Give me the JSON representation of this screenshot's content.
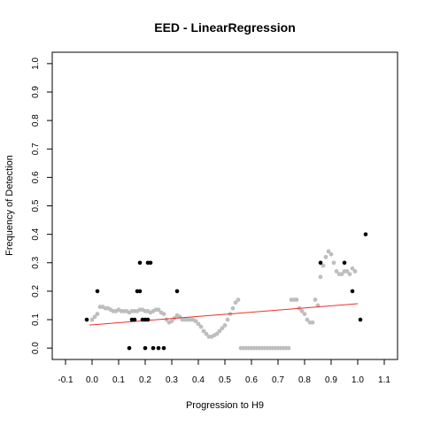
{
  "chart_data": {
    "type": "scatter",
    "title": "EED - LinearRegression",
    "xlabel": "Progression to H9",
    "ylabel": "Frequency of Detection",
    "xlim": [
      -0.15,
      1.15
    ],
    "ylim": [
      -0.04,
      1.04
    ],
    "x_ticks": [
      "-0.1",
      "0.0",
      "0.1",
      "0.2",
      "0.3",
      "0.4",
      "0.5",
      "0.6",
      "0.7",
      "0.8",
      "0.9",
      "1.0",
      "1.1"
    ],
    "y_ticks": [
      "0.0",
      "0.1",
      "0.2",
      "0.3",
      "0.4",
      "0.5",
      "0.6",
      "0.7",
      "0.8",
      "0.9",
      "1.0"
    ],
    "grid": false,
    "legend": "none",
    "colors": {
      "observed": "#000000",
      "smoothed": "#bebebe",
      "regression": "#e8322d"
    },
    "series": [
      {
        "type": "line",
        "values": [
          [
            -0.01,
            0.081
          ],
          [
            1.0,
            0.156
          ]
        ]
      },
      {
        "type": "scatter",
        "values": [
          [
            0.0,
            0.1
          ],
          [
            0.01,
            0.11
          ],
          [
            0.02,
            0.12
          ],
          [
            0.03,
            0.145
          ],
          [
            0.04,
            0.145
          ],
          [
            0.05,
            0.14
          ],
          [
            0.06,
            0.14
          ],
          [
            0.07,
            0.135
          ],
          [
            0.08,
            0.13
          ],
          [
            0.09,
            0.13
          ],
          [
            0.1,
            0.135
          ],
          [
            0.11,
            0.13
          ],
          [
            0.12,
            0.13
          ],
          [
            0.13,
            0.13
          ],
          [
            0.14,
            0.125
          ],
          [
            0.15,
            0.13
          ],
          [
            0.16,
            0.13
          ],
          [
            0.17,
            0.13
          ],
          [
            0.18,
            0.135
          ],
          [
            0.19,
            0.135
          ],
          [
            0.2,
            0.13
          ],
          [
            0.21,
            0.13
          ],
          [
            0.22,
            0.125
          ],
          [
            0.23,
            0.13
          ],
          [
            0.24,
            0.135
          ],
          [
            0.25,
            0.135
          ],
          [
            0.26,
            0.125
          ],
          [
            0.27,
            0.12
          ],
          [
            0.28,
            0.1
          ],
          [
            0.29,
            0.09
          ],
          [
            0.3,
            0.095
          ],
          [
            0.31,
            0.105
          ],
          [
            0.32,
            0.115
          ],
          [
            0.33,
            0.11
          ],
          [
            0.34,
            0.1
          ],
          [
            0.35,
            0.1
          ],
          [
            0.36,
            0.1
          ],
          [
            0.37,
            0.1
          ],
          [
            0.38,
            0.1
          ],
          [
            0.39,
            0.095
          ],
          [
            0.4,
            0.085
          ],
          [
            0.41,
            0.075
          ],
          [
            0.42,
            0.06
          ],
          [
            0.43,
            0.05
          ],
          [
            0.44,
            0.04
          ],
          [
            0.45,
            0.04
          ],
          [
            0.46,
            0.045
          ],
          [
            0.47,
            0.05
          ],
          [
            0.48,
            0.06
          ],
          [
            0.49,
            0.07
          ],
          [
            0.5,
            0.08
          ],
          [
            0.51,
            0.1
          ],
          [
            0.52,
            0.12
          ],
          [
            0.53,
            0.14
          ],
          [
            0.54,
            0.16
          ],
          [
            0.55,
            0.17
          ],
          [
            0.56,
            0.0
          ],
          [
            0.57,
            0.0
          ],
          [
            0.58,
            0.0
          ],
          [
            0.59,
            0.0
          ],
          [
            0.6,
            0.0
          ],
          [
            0.61,
            0.0
          ],
          [
            0.62,
            0.0
          ],
          [
            0.63,
            0.0
          ],
          [
            0.64,
            0.0
          ],
          [
            0.65,
            0.0
          ],
          [
            0.66,
            0.0
          ],
          [
            0.67,
            0.0
          ],
          [
            0.68,
            0.0
          ],
          [
            0.69,
            0.0
          ],
          [
            0.7,
            0.0
          ],
          [
            0.71,
            0.0
          ],
          [
            0.72,
            0.0
          ],
          [
            0.73,
            0.0
          ],
          [
            0.74,
            0.0
          ],
          [
            0.75,
            0.17
          ],
          [
            0.76,
            0.17
          ],
          [
            0.77,
            0.17
          ],
          [
            0.78,
            0.14
          ],
          [
            0.79,
            0.13
          ],
          [
            0.8,
            0.12
          ],
          [
            0.81,
            0.1
          ],
          [
            0.82,
            0.09
          ],
          [
            0.83,
            0.09
          ],
          [
            0.84,
            0.17
          ],
          [
            0.85,
            0.15
          ],
          [
            0.86,
            0.25
          ],
          [
            0.87,
            0.29
          ],
          [
            0.88,
            0.32
          ],
          [
            0.89,
            0.34
          ],
          [
            0.9,
            0.33
          ],
          [
            0.91,
            0.3
          ],
          [
            0.92,
            0.27
          ],
          [
            0.93,
            0.26
          ],
          [
            0.94,
            0.26
          ],
          [
            0.95,
            0.27
          ],
          [
            0.96,
            0.27
          ],
          [
            0.97,
            0.26
          ],
          [
            0.98,
            0.28
          ],
          [
            0.99,
            0.27
          ]
        ]
      },
      {
        "type": "scatter",
        "values": [
          [
            -0.02,
            0.1
          ],
          [
            0.02,
            0.2
          ],
          [
            0.14,
            0.0
          ],
          [
            0.15,
            0.1
          ],
          [
            0.16,
            0.1
          ],
          [
            0.17,
            0.2
          ],
          [
            0.18,
            0.2
          ],
          [
            0.18,
            0.3
          ],
          [
            0.19,
            0.1
          ],
          [
            0.2,
            0.1
          ],
          [
            0.21,
            0.1
          ],
          [
            0.2,
            0.0
          ],
          [
            0.21,
            0.3
          ],
          [
            0.22,
            0.3
          ],
          [
            0.23,
            0.0
          ],
          [
            0.25,
            0.0
          ],
          [
            0.27,
            0.0
          ],
          [
            0.32,
            0.2
          ],
          [
            0.86,
            0.3
          ],
          [
            0.95,
            0.3
          ],
          [
            0.98,
            0.2
          ],
          [
            1.01,
            0.1
          ],
          [
            1.03,
            0.4
          ]
        ]
      }
    ]
  }
}
